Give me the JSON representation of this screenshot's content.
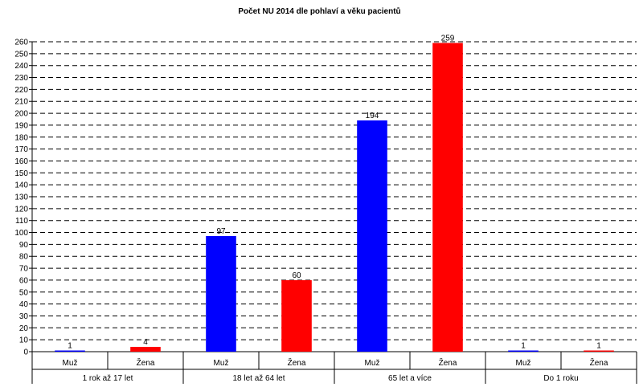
{
  "chart_data": {
    "type": "bar",
    "title": "Počet NU 2014 dle pohlaví a věku pacientů",
    "xlabel": "",
    "ylabel": "",
    "ylim": [
      0,
      260
    ],
    "ytick_step": 10,
    "grid": true,
    "groups": [
      "1 rok až 17 let",
      "18 let až 64 let",
      "65 let a více",
      "Do 1 roku"
    ],
    "subcategories": [
      "Muž",
      "Žena"
    ],
    "bars": [
      {
        "group": "1 rok až 17 let",
        "label": "Muž",
        "value": 1,
        "color": "#0000ff"
      },
      {
        "group": "1 rok až 17 let",
        "label": "Žena",
        "value": 4,
        "color": "#ff0000"
      },
      {
        "group": "18 let až 64 let",
        "label": "Muž",
        "value": 97,
        "color": "#0000ff"
      },
      {
        "group": "18 let až 64 let",
        "label": "Žena",
        "value": 60,
        "color": "#ff0000"
      },
      {
        "group": "65 let a více",
        "label": "Muž",
        "value": 194,
        "color": "#0000ff"
      },
      {
        "group": "65 let a více",
        "label": "Žena",
        "value": 259,
        "color": "#ff0000"
      },
      {
        "group": "Do 1 roku",
        "label": "Muž",
        "value": 1,
        "color": "#0000ff"
      },
      {
        "group": "Do 1 roku",
        "label": "Žena",
        "value": 1,
        "color": "#ff0000"
      }
    ]
  }
}
